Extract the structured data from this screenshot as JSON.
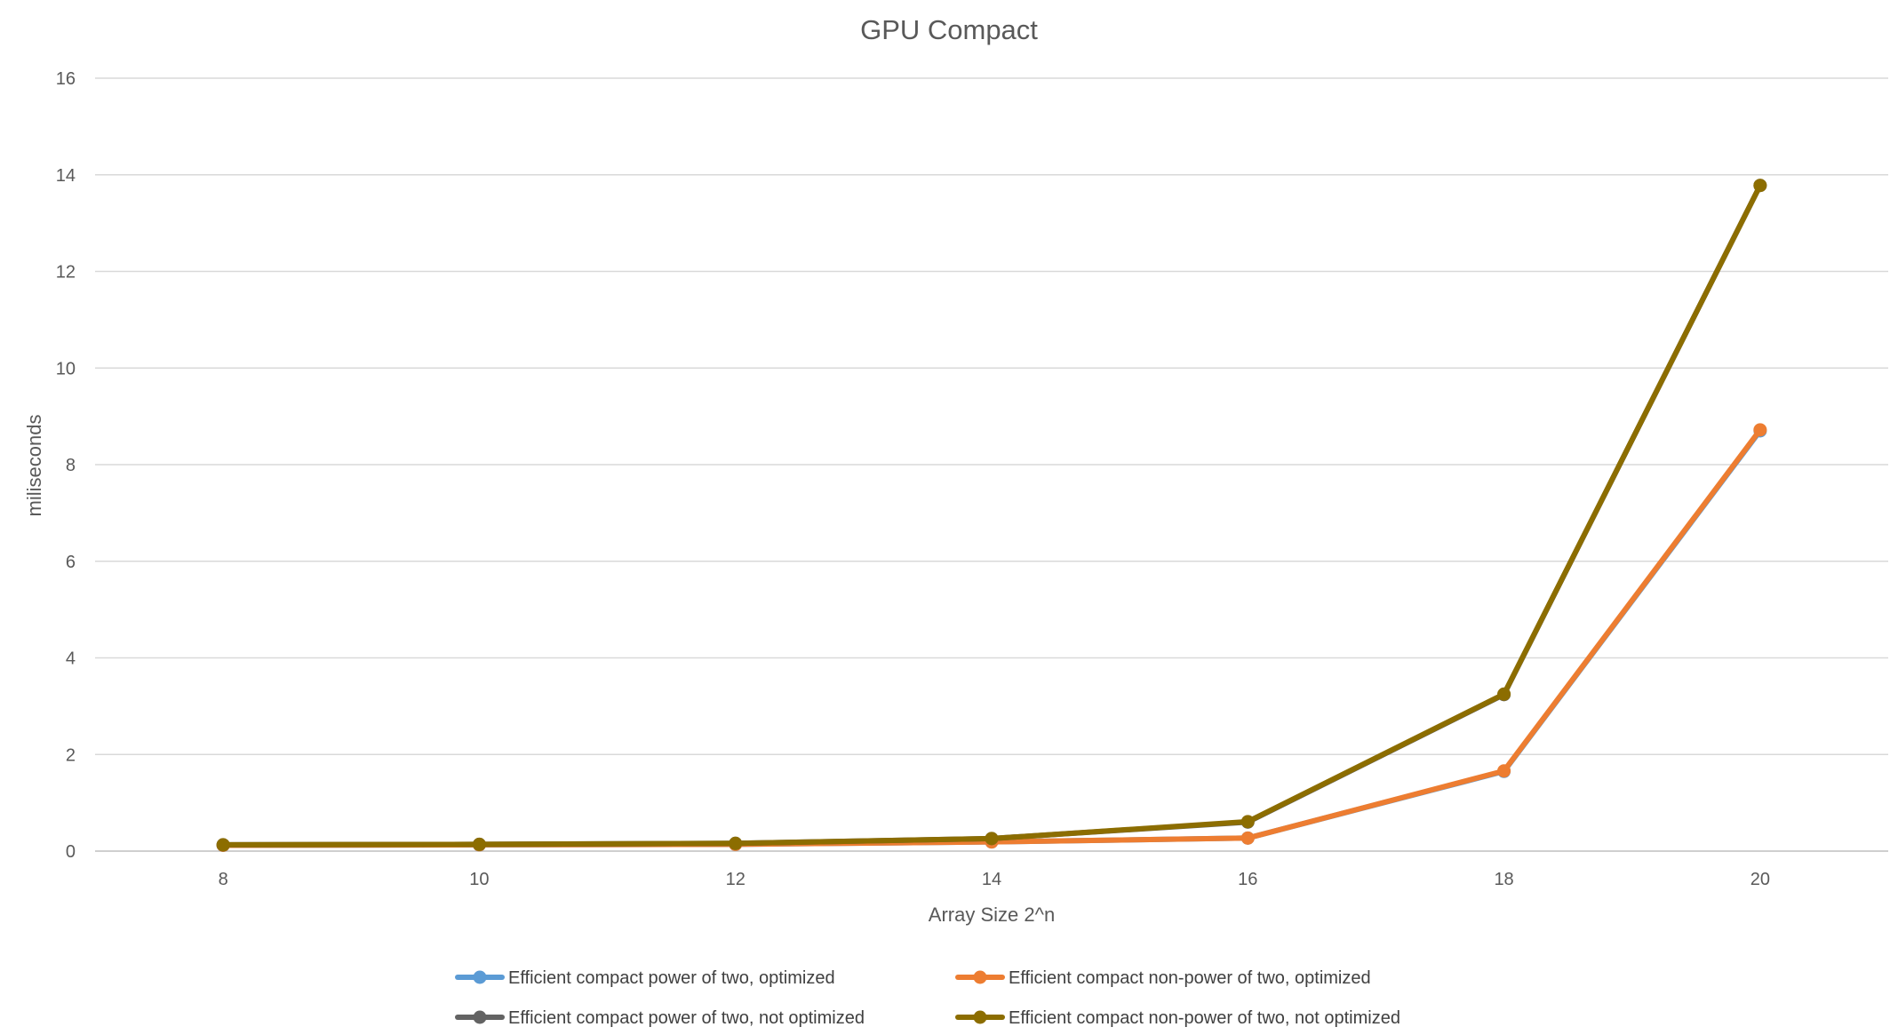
{
  "chart_data": {
    "type": "line",
    "title": "GPU Compact",
    "xlabel": "Array Size 2^n",
    "ylabel": "miliseconds",
    "x": [
      8,
      10,
      12,
      14,
      16,
      18,
      20
    ],
    "x_tick_labels": [
      "8",
      "10",
      "12",
      "14",
      "16",
      "18",
      "20"
    ],
    "ylim": [
      0,
      16
    ],
    "y_ticks": [
      0,
      2,
      4,
      6,
      8,
      10,
      12,
      14,
      16
    ],
    "y_tick_labels": [
      "0",
      "2",
      "4",
      "6",
      "8",
      "10",
      "12",
      "14",
      "16"
    ],
    "grid": "horizontal",
    "legend_position": "bottom",
    "series": [
      {
        "name": "Efficient compact power of two, optimized",
        "color": "#5b9bd5",
        "values": [
          0.12,
          0.13,
          0.14,
          0.19,
          0.27,
          1.65,
          8.7
        ]
      },
      {
        "name": "Efficient compact non-power of two, optimized",
        "color": "#ed7d31",
        "values": [
          0.12,
          0.13,
          0.14,
          0.19,
          0.27,
          1.66,
          8.72
        ]
      },
      {
        "name": "Efficient compact power of two, not optimized",
        "color": "#636363",
        "values": [
          0.13,
          0.14,
          0.16,
          0.26,
          0.6,
          3.24,
          13.78
        ]
      },
      {
        "name": "Efficient compact non-power of two, not optimized",
        "color": "#8c6d00",
        "values": [
          0.13,
          0.14,
          0.16,
          0.26,
          0.61,
          3.25,
          13.78
        ]
      }
    ]
  }
}
